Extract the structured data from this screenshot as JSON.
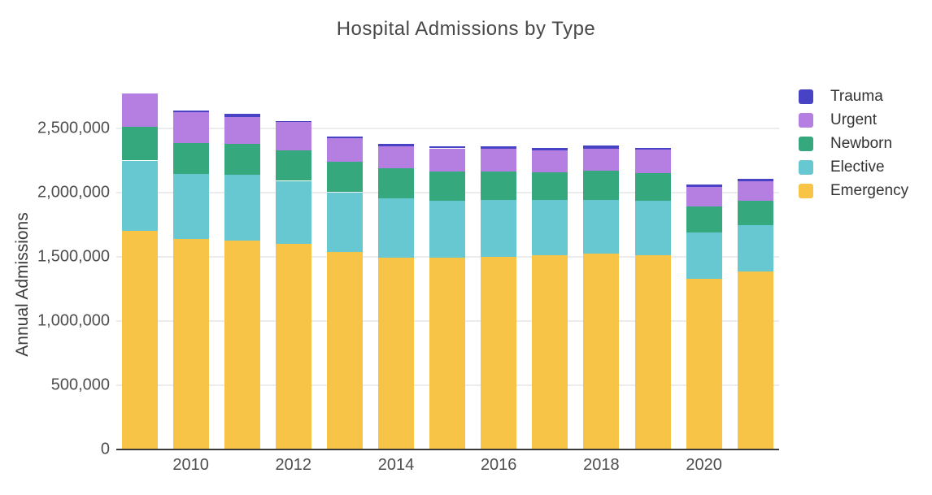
{
  "chart_data": {
    "type": "bar",
    "stacked": true,
    "title": "Hospital Admissions by Type",
    "xlabel": "",
    "ylabel": "Annual Admissions",
    "categories": [
      "2009",
      "2010",
      "2011",
      "2012",
      "2013",
      "2014",
      "2015",
      "2016",
      "2017",
      "2018",
      "2019",
      "2020",
      "2021"
    ],
    "series": [
      {
        "name": "Emergency",
        "color": "#F7C448",
        "values": [
          1700000,
          1638000,
          1627000,
          1602000,
          1538000,
          1496000,
          1492000,
          1502000,
          1511000,
          1525000,
          1511000,
          1331000,
          1388000
        ]
      },
      {
        "name": "Elective",
        "color": "#67C8D1",
        "values": [
          550000,
          507000,
          514000,
          490000,
          465000,
          459000,
          446000,
          442000,
          433000,
          418000,
          428000,
          359000,
          357000
        ]
      },
      {
        "name": "Newborn",
        "color": "#36A87E",
        "values": [
          264000,
          243000,
          236000,
          239000,
          237000,
          234000,
          228000,
          222000,
          215000,
          226000,
          215000,
          203000,
          194000
        ]
      },
      {
        "name": "Urgent",
        "color": "#B57EE1",
        "values": [
          256000,
          240000,
          212000,
          217000,
          184000,
          173000,
          179000,
          173000,
          171000,
          175000,
          180000,
          152000,
          152000
        ]
      },
      {
        "name": "Trauma",
        "color": "#4843C5",
        "values": [
          0,
          13000,
          25000,
          11000,
          15000,
          15000,
          13000,
          19000,
          19000,
          23000,
          13000,
          17000,
          19000
        ]
      }
    ],
    "y_ticks": [
      {
        "value": 0,
        "label": "0"
      },
      {
        "value": 500000,
        "label": "500,000"
      },
      {
        "value": 1000000,
        "label": "1,000,000"
      },
      {
        "value": 1500000,
        "label": "1,500,000"
      },
      {
        "value": 2000000,
        "label": "2,000,000"
      },
      {
        "value": 2500000,
        "label": "2,500,000"
      }
    ],
    "x_tick_labels": [
      "2010",
      "2012",
      "2014",
      "2016",
      "2018",
      "2020"
    ],
    "ylim": [
      0,
      2930000
    ],
    "grid": true,
    "legend_position": "top-right",
    "legend_order": [
      "Trauma",
      "Urgent",
      "Newborn",
      "Elective",
      "Emergency"
    ]
  }
}
